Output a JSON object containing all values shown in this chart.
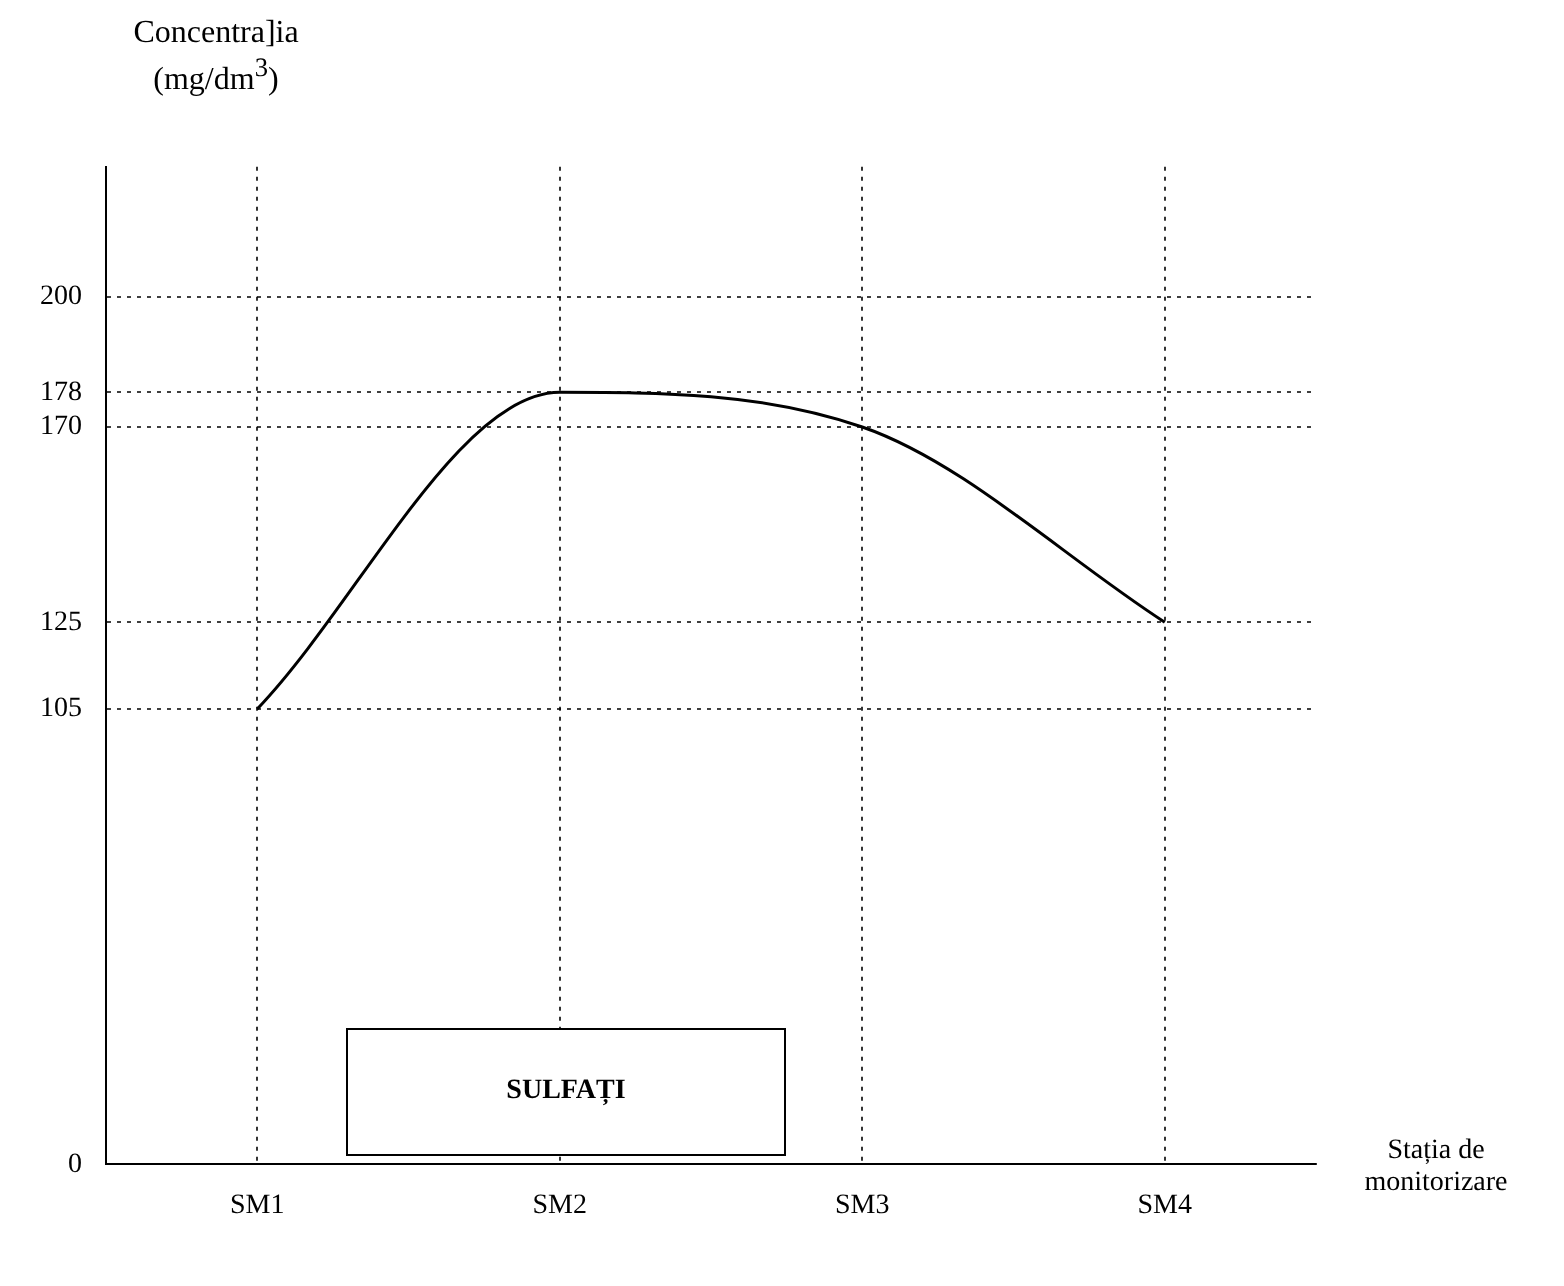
{
  "chart_data": {
    "type": "line",
    "xlabel": "Stația de monitorizare",
    "ylabel": "Concentra]ia (mg/dm$^{3}$)",
    "categories": [
      "SM1",
      "SM2",
      "SM3",
      "SM4"
    ],
    "series": [
      {
        "color": "#000000",
        "values": [
          105,
          178,
          170,
          125
        ]
      }
    ],
    "ylim": [
      0,
      230
    ],
    "yticks": [
      0,
      105,
      125,
      170,
      178,
      200
    ],
    "grid": true,
    "legend": false,
    "marker": "none",
    "line_style": "solid",
    "annotations": [
      "SULFAȚI"
    ]
  }
}
